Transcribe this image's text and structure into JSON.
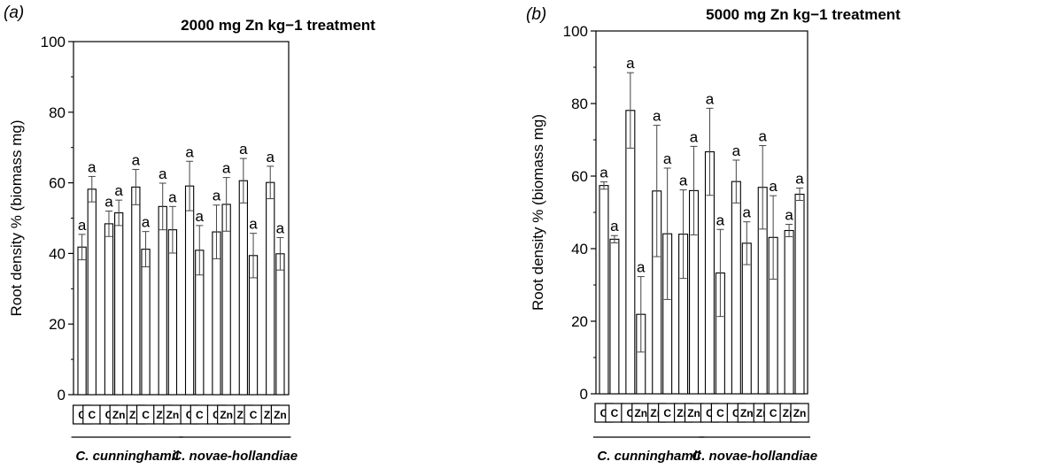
{
  "chart_data": [
    {
      "type": "bar",
      "panel_label": "(a)",
      "title": "2000 mg Zn kg−1 treatment",
      "ylabel": "Root density % (biomass mg)",
      "ylim": [
        0,
        100
      ],
      "yticks": [
        0,
        20,
        40,
        60,
        80,
        100
      ],
      "grid": false,
      "bars": [
        {
          "value": 41.8,
          "error": 3.6,
          "letter": "a",
          "label": "C"
        },
        {
          "value": 58.2,
          "error": 3.6,
          "letter": "a",
          "label": "C"
        },
        {
          "value": 48.4,
          "error": 3.6,
          "letter": "a",
          "label": "C"
        },
        {
          "value": 51.5,
          "error": 3.6,
          "letter": "a",
          "label": "Zn"
        },
        {
          "value": 58.8,
          "error": 5.0,
          "letter": "a",
          "label": "Zn"
        },
        {
          "value": 41.2,
          "error": 5.0,
          "letter": "a",
          "label": "C"
        },
        {
          "value": 53.3,
          "error": 6.6,
          "letter": "a",
          "label": "Zn"
        },
        {
          "value": 46.7,
          "error": 6.6,
          "letter": "a",
          "label": "Zn"
        },
        {
          "value": 59.1,
          "error": 7.0,
          "letter": "a",
          "label": "C"
        },
        {
          "value": 40.9,
          "error": 7.0,
          "letter": "a",
          "label": "C"
        },
        {
          "value": 46.1,
          "error": 7.6,
          "letter": "a",
          "label": "C"
        },
        {
          "value": 53.9,
          "error": 7.6,
          "letter": "a",
          "label": "Zn"
        },
        {
          "value": 60.6,
          "error": 6.3,
          "letter": "a",
          "label": "Zn"
        },
        {
          "value": 39.4,
          "error": 6.3,
          "letter": "a",
          "label": "C"
        },
        {
          "value": 60.1,
          "error": 4.6,
          "letter": "a",
          "label": "Zn"
        },
        {
          "value": 39.9,
          "error": 4.6,
          "letter": "a",
          "label": "Zn"
        }
      ],
      "species": [
        {
          "name": "C. cunninghamii",
          "bars": [
            0,
            7
          ]
        },
        {
          "name": "C. novae-hollandiae",
          "bars": [
            8,
            15
          ]
        }
      ]
    },
    {
      "type": "bar",
      "panel_label": "(b)",
      "title": "5000 mg Zn kg−1 treatment",
      "ylabel": "Root density % (biomass mg)",
      "ylim": [
        0,
        100
      ],
      "yticks": [
        0,
        20,
        40,
        60,
        80,
        100
      ],
      "grid": false,
      "bars": [
        {
          "value": 57.4,
          "error": 1.0,
          "letter": "a",
          "label": "C"
        },
        {
          "value": 42.6,
          "error": 1.0,
          "letter": "a",
          "label": "C"
        },
        {
          "value": 78.1,
          "error": 10.4,
          "letter": "a",
          "label": "C"
        },
        {
          "value": 21.9,
          "error": 10.4,
          "letter": "a",
          "label": "Zn"
        },
        {
          "value": 55.9,
          "error": 18.1,
          "letter": "a",
          "label": "Zn"
        },
        {
          "value": 44.1,
          "error": 18.1,
          "letter": "a",
          "label": "C"
        },
        {
          "value": 44.0,
          "error": 12.2,
          "letter": "a",
          "label": "Zn"
        },
        {
          "value": 56.0,
          "error": 12.2,
          "letter": "a",
          "label": "Zn"
        },
        {
          "value": 66.7,
          "error": 12.0,
          "letter": "a",
          "label": "C"
        },
        {
          "value": 33.3,
          "error": 12.0,
          "letter": "a",
          "label": "C"
        },
        {
          "value": 58.5,
          "error": 5.9,
          "letter": "a",
          "label": "C"
        },
        {
          "value": 41.5,
          "error": 5.9,
          "letter": "a",
          "label": "Zn"
        },
        {
          "value": 56.9,
          "error": 11.5,
          "letter": "a",
          "label": "Zn"
        },
        {
          "value": 43.1,
          "error": 11.5,
          "letter": "a",
          "label": "C"
        },
        {
          "value": 45.0,
          "error": 1.7,
          "letter": "a",
          "label": "Zn"
        },
        {
          "value": 55.0,
          "error": 1.7,
          "letter": "a",
          "label": "Zn"
        }
      ],
      "species": [
        {
          "name": "C. cunninghamii",
          "bars": [
            0,
            7
          ]
        },
        {
          "name": "C. novae-hollandiae",
          "bars": [
            8,
            15
          ]
        }
      ]
    }
  ]
}
